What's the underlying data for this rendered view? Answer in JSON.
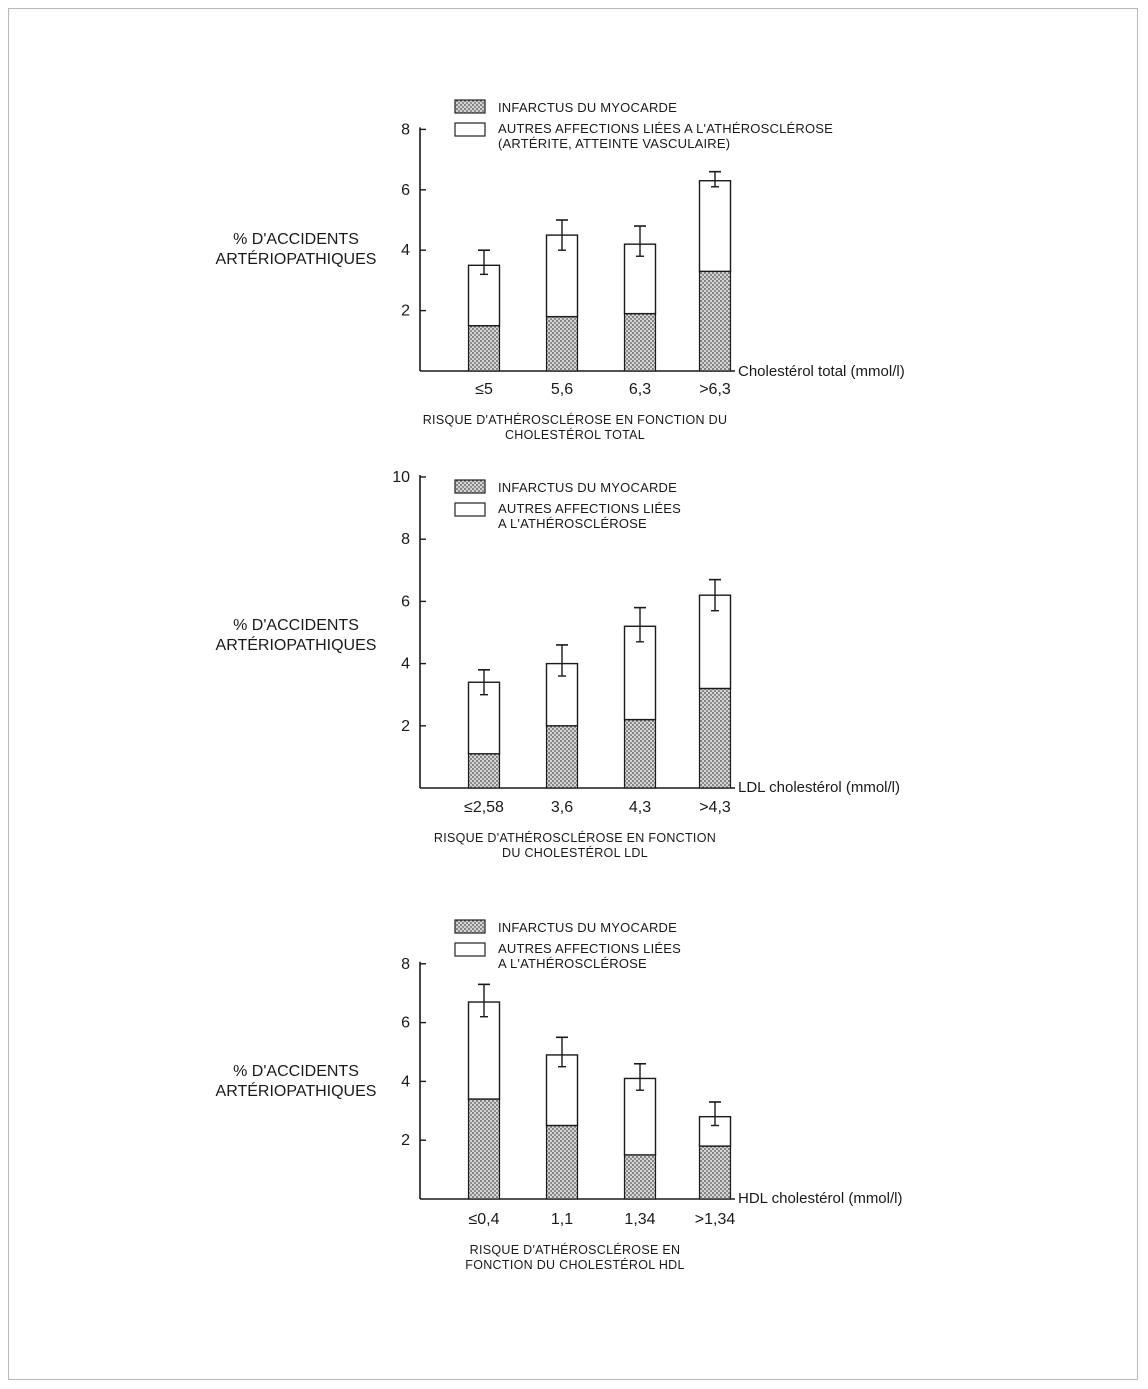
{
  "chart_data": [
    {
      "type": "bar",
      "stacked": true,
      "legend": [
        {
          "name": "INFARCTUS DU MYOCARDE",
          "pattern": "dotted"
        },
        {
          "name": "AUTRES AFFECTIONS LIÉES A L'ATHÉROSCLÉROSE",
          "sub": "(ARTÉRITE, ATTEINTE VASCULAIRE)",
          "pattern": "white"
        }
      ],
      "ylabel": [
        "% D'ACCIDENTS",
        "ARTÉRIOPATHIQUES"
      ],
      "xlabel": "Cholestérol total (mmol/l)",
      "categories": [
        "≤5",
        "5,6",
        "6,3",
        ">6,3"
      ],
      "series": [
        {
          "name": "INFARCTUS DU MYOCARDE",
          "values": [
            1.5,
            1.8,
            1.9,
            3.3
          ]
        },
        {
          "name": "AUTRES AFFECTIONS LIÉES A L'ATHÉROSCLÉROSE",
          "values": [
            2.0,
            2.7,
            2.3,
            3.0
          ]
        }
      ],
      "totals": [
        3.5,
        4.5,
        4.2,
        6.3
      ],
      "error_upper": [
        4.0,
        5.0,
        4.8,
        6.6
      ],
      "error_lower": [
        3.2,
        4.0,
        3.8,
        6.1
      ],
      "yticks": [
        2,
        4,
        6,
        8
      ],
      "ylim": [
        0,
        8
      ],
      "caption": [
        "RISQUE D'ATHÉROSCLÉROSE EN FONCTION DU",
        "CHOLESTÉROL TOTAL"
      ]
    },
    {
      "type": "bar",
      "stacked": true,
      "legend": [
        {
          "name": "INFARCTUS DU MYOCARDE",
          "pattern": "dotted"
        },
        {
          "name": "AUTRES AFFECTIONS LIÉES",
          "sub": "A L'ATHÉROSCLÉROSE",
          "pattern": "white"
        }
      ],
      "ylabel": [
        "% D'ACCIDENTS",
        "ARTÉRIOPATHIQUES"
      ],
      "xlabel": "LDL cholestérol (mmol/l)",
      "categories": [
        "≤2,58",
        "3,6",
        "4,3",
        ">4,3"
      ],
      "series": [
        {
          "name": "INFARCTUS DU MYOCARDE",
          "values": [
            1.1,
            2.0,
            2.2,
            3.2
          ]
        },
        {
          "name": "AUTRES AFFECTIONS LIÉES A L'ATHÉROSCLÉROSE",
          "values": [
            2.3,
            2.0,
            3.0,
            3.0
          ]
        }
      ],
      "totals": [
        3.4,
        4.0,
        5.2,
        6.2
      ],
      "error_upper": [
        3.8,
        4.6,
        5.8,
        6.7
      ],
      "error_lower": [
        3.0,
        3.6,
        4.7,
        5.7
      ],
      "yticks": [
        2,
        4,
        6,
        8,
        10
      ],
      "ylim": [
        0,
        10
      ],
      "caption": [
        "RISQUE D'ATHÉROSCLÉROSE EN FONCTION",
        "DU CHOLESTÉROL LDL"
      ]
    },
    {
      "type": "bar",
      "stacked": true,
      "legend": [
        {
          "name": "INFARCTUS DU MYOCARDE",
          "pattern": "dotted"
        },
        {
          "name": "AUTRES AFFECTIONS LIÉES",
          "sub": "A L'ATHÉROSCLÉROSE",
          "pattern": "white"
        }
      ],
      "ylabel": [
        "% D'ACCIDENTS",
        "ARTÉRIOPATHIQUES"
      ],
      "xlabel": "HDL cholestérol (mmol/l)",
      "categories": [
        "≤0,4",
        "1,1",
        "1,34",
        ">1,34"
      ],
      "series": [
        {
          "name": "INFARCTUS DU MYOCARDE",
          "values": [
            3.4,
            2.5,
            1.5,
            1.8
          ]
        },
        {
          "name": "AUTRES AFFECTIONS LIÉES A L'ATHÉROSCLÉROSE",
          "values": [
            3.3,
            2.4,
            2.6,
            1.0
          ]
        }
      ],
      "totals": [
        6.7,
        4.9,
        4.1,
        2.8
      ],
      "error_upper": [
        7.3,
        5.5,
        4.6,
        3.3
      ],
      "error_lower": [
        6.2,
        4.5,
        3.7,
        2.5
      ],
      "yticks": [
        2,
        4,
        6,
        8
      ],
      "ylim": [
        0,
        8
      ],
      "caption": [
        "RISQUE D'ATHÉROSCLÉROSE EN",
        "FONCTION DU CHOLESTÉROL HDL"
      ]
    }
  ]
}
